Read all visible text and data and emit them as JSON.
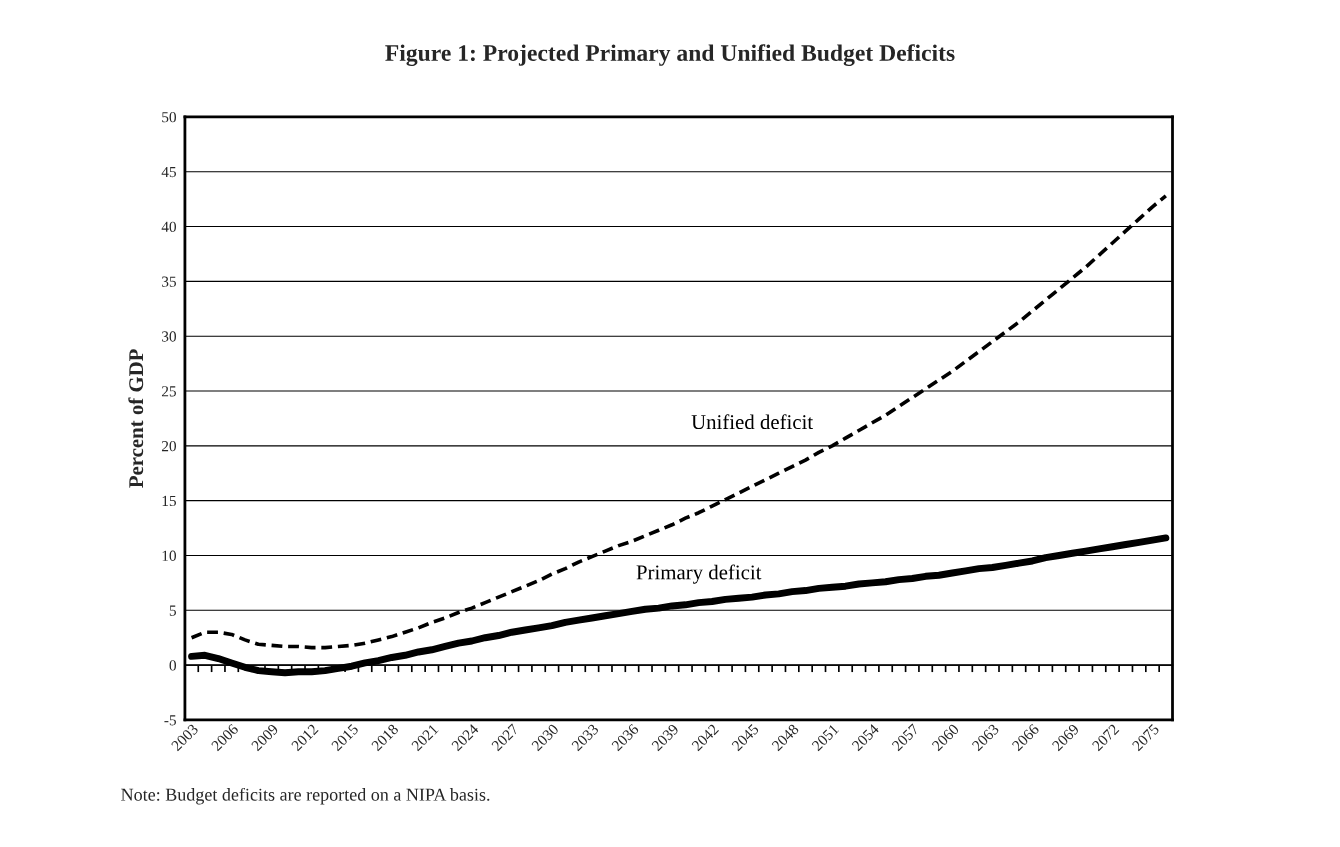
{
  "chart_data": {
    "type": "line",
    "title": "Figure 1: Projected Primary and Unified Budget Deficits",
    "ylabel": "Percent of GDP",
    "categories": [
      "2003",
      null,
      null,
      "2006",
      null,
      null,
      "2009",
      null,
      null,
      "2012",
      null,
      null,
      "2015",
      null,
      null,
      "2018",
      null,
      null,
      "2021",
      null,
      null,
      "2024",
      null,
      null,
      "2027",
      null,
      null,
      "2030",
      null,
      null,
      "2033",
      null,
      null,
      "2036",
      null,
      null,
      "2039",
      null,
      null,
      "2042",
      null,
      null,
      "2045",
      null,
      null,
      "2048",
      null,
      null,
      "2051",
      null,
      null,
      "2054",
      null,
      null,
      "2057",
      null,
      null,
      "2060",
      null,
      null,
      "2063",
      null,
      null,
      "2066",
      null,
      null,
      "2069",
      null,
      null,
      "2072",
      null,
      null,
      "2075",
      null
    ],
    "series": [
      {
        "name": "Primary deficit",
        "color": "#000000",
        "line_style": "solid",
        "values": [
          0.8,
          0.9,
          0.6,
          0.2,
          -0.2,
          -0.5,
          -0.6,
          -0.7,
          -0.6,
          -0.6,
          -0.5,
          -0.3,
          -0.1,
          0.2,
          0.4,
          0.7,
          0.9,
          1.2,
          1.4,
          1.7,
          2.0,
          2.2,
          2.5,
          2.7,
          3.0,
          3.2,
          3.4,
          3.6,
          3.9,
          4.1,
          4.3,
          4.5,
          4.7,
          4.9,
          5.1,
          5.2,
          5.4,
          5.5,
          5.7,
          5.8,
          6.0,
          6.1,
          6.2,
          6.4,
          6.5,
          6.7,
          6.8,
          7.0,
          7.1,
          7.2,
          7.4,
          7.5,
          7.6,
          7.8,
          7.9,
          8.1,
          8.2,
          8.4,
          8.6,
          8.8,
          8.9,
          9.1,
          9.3,
          9.5,
          9.8,
          10.0,
          10.2,
          10.4,
          10.6,
          10.8,
          11.0,
          11.2,
          11.4,
          11.6
        ]
      },
      {
        "name": "Unified deficit",
        "color": "#000000",
        "line_style": "dashed",
        "values": [
          2.5,
          3.0,
          3.0,
          2.8,
          2.3,
          1.9,
          1.8,
          1.7,
          1.7,
          1.6,
          1.6,
          1.7,
          1.8,
          2.0,
          2.3,
          2.6,
          3.0,
          3.4,
          3.9,
          4.3,
          4.8,
          5.2,
          5.7,
          6.2,
          6.7,
          7.2,
          7.7,
          8.3,
          8.8,
          9.4,
          9.9,
          10.4,
          10.9,
          11.3,
          11.8,
          12.3,
          12.8,
          13.4,
          13.9,
          14.5,
          15.1,
          15.7,
          16.3,
          16.9,
          17.5,
          18.1,
          18.7,
          19.4,
          20.0,
          20.7,
          21.4,
          22.1,
          22.8,
          23.6,
          24.4,
          25.2,
          26.0,
          26.8,
          27.7,
          28.6,
          29.5,
          30.4,
          31.3,
          32.3,
          33.3,
          34.3,
          35.3,
          36.3,
          37.4,
          38.5,
          39.6,
          40.7,
          41.8,
          42.8
        ]
      }
    ],
    "ylim": [
      -5,
      50
    ],
    "yticks": [
      -5,
      0,
      5,
      10,
      15,
      20,
      25,
      30,
      35,
      40,
      45,
      50
    ],
    "grid": "y",
    "legend": false,
    "annotations": [
      "Note: Budget deficits are reported on a NIPA basis."
    ]
  }
}
